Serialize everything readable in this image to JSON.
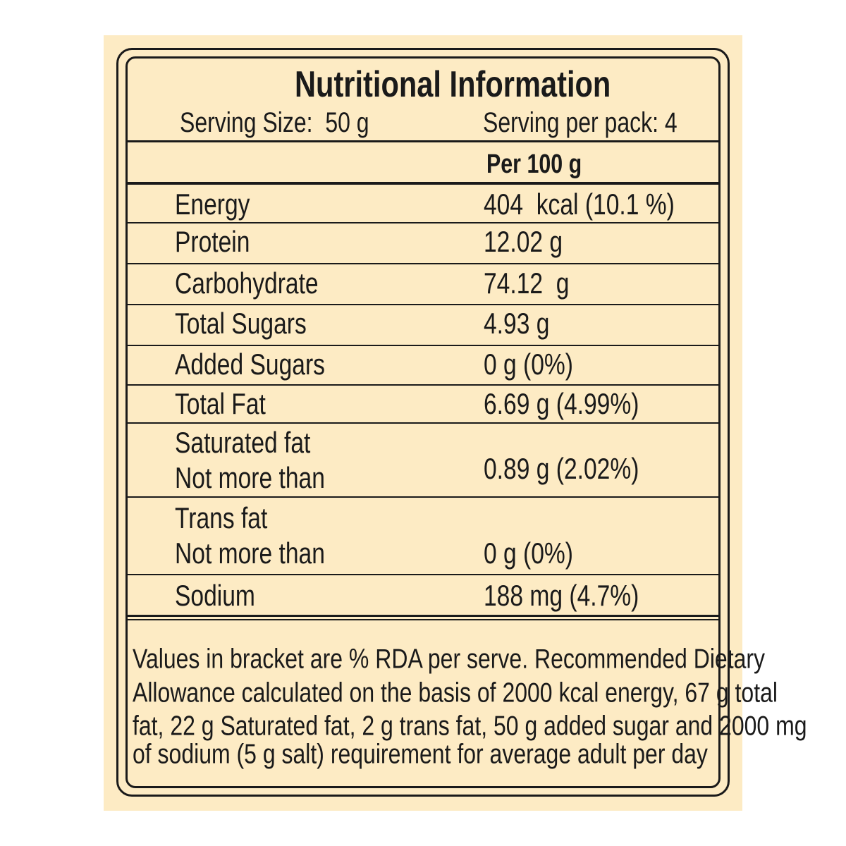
{
  "header": {
    "title": "Nutritional Information",
    "serving_size": "Serving Size:  50 g",
    "servings_per_pack": "Serving per pack: 4"
  },
  "table": {
    "column_header": "Per 100 g",
    "rows": [
      {
        "name": [
          "Energy"
        ],
        "value": "404  kcal (10.1 %)"
      },
      {
        "name": [
          "Protein"
        ],
        "value": "12.02 g"
      },
      {
        "name": [
          "Carbohydrate"
        ],
        "value": "74.12  g"
      },
      {
        "name": [
          "Total Sugars"
        ],
        "value": "4.93 g"
      },
      {
        "name": [
          "Added Sugars"
        ],
        "value": "0 g (0%)"
      },
      {
        "name": [
          "Total Fat"
        ],
        "value": "6.69 g (4.99%)"
      },
      {
        "name": [
          "Saturated fat",
          "Not more than"
        ],
        "value": "0.89 g (2.02%)"
      },
      {
        "name": [
          "Trans fat",
          "Not more than"
        ],
        "value": "0 g (0%)"
      },
      {
        "name": [
          "Sodium"
        ],
        "value": "188 mg (4.7%)"
      }
    ]
  },
  "footnote": [
    "Values in bracket are % RDA per serve. Recommended Dietary",
    "Allowance calculated on the basis of 2000 kcal energy, 67 g total",
    "fat, 22 g Saturated fat, 2 g trans fat, 50 g added sugar and 2000 mg",
    "of sodium (5 g salt) requirement for average adult per day"
  ]
}
